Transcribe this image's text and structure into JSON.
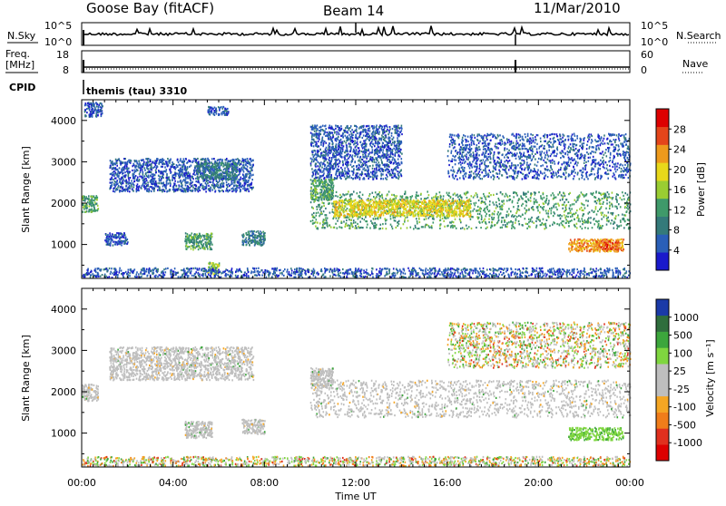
{
  "header": {
    "station": "Goose Bay (fitACF)",
    "beam": "Beam 14",
    "date": "11/Mar/2010"
  },
  "status_panels": {
    "nsky_label": "N.Sky",
    "nsky_ticks": [
      "10^5",
      "10^0"
    ],
    "nsearch_label": "N.Search",
    "nsearch_ticks": [
      "10^5",
      "10^0"
    ],
    "freq_label_line1": "Freq.",
    "freq_label_line2": "[MHz]",
    "freq_ticks": [
      "18",
      "8"
    ],
    "nave_label": "Nave",
    "nave_ticks": [
      "60",
      "0"
    ],
    "cpid_label": "CPID",
    "cpid_value": "themis (tau) 3310"
  },
  "chart_data": [
    {
      "type": "heatmap",
      "name": "power",
      "ylabel": "Slant Range [km]",
      "y_ticks": [
        "4000",
        "3000",
        "2000",
        "1000"
      ],
      "ylim": [
        180,
        4500
      ],
      "xlim_hours": [
        0,
        24
      ],
      "colorbar": {
        "label": "Power [dB]",
        "tick_labels": [
          "28",
          "24",
          "20",
          "16",
          "12",
          "8",
          "4"
        ],
        "colors": [
          "#1a1acc",
          "#2a5fb8",
          "#347a7a",
          "#3f9a6a",
          "#9acd32",
          "#e8d81a",
          "#ee9a1c",
          "#e4451a",
          "#dd0000"
        ]
      },
      "regions": [
        {
          "t0": 0.0,
          "t1": 0.7,
          "r0": 1800,
          "r1": 2200,
          "level": 3
        },
        {
          "t0": 0.1,
          "t1": 0.9,
          "r0": 4100,
          "r1": 4450,
          "level": 1
        },
        {
          "t0": 1.2,
          "t1": 7.5,
          "r0": 2300,
          "r1": 3100,
          "level": 1
        },
        {
          "t0": 5.0,
          "t1": 6.8,
          "r0": 2600,
          "r1": 3000,
          "level": 2
        },
        {
          "t0": 1.0,
          "t1": 2.0,
          "r0": 1000,
          "r1": 1300,
          "level": 1
        },
        {
          "t0": 4.5,
          "t1": 5.7,
          "r0": 900,
          "r1": 1300,
          "level": 3
        },
        {
          "t0": 7.0,
          "t1": 8.0,
          "r0": 1000,
          "r1": 1350,
          "level": 2
        },
        {
          "t0": 5.5,
          "t1": 6.4,
          "r0": 4150,
          "r1": 4350,
          "level": 1
        },
        {
          "t0": 5.5,
          "t1": 6.0,
          "r0": 300,
          "r1": 600,
          "level": 4
        },
        {
          "t0": 0.0,
          "t1": 24.0,
          "r0": 200,
          "r1": 450,
          "level": 1
        },
        {
          "t0": 10.0,
          "t1": 24.0,
          "r0": 1400,
          "r1": 2300,
          "level": 3
        },
        {
          "t0": 11.0,
          "t1": 17.0,
          "r0": 1700,
          "r1": 2100,
          "level": 5
        },
        {
          "t0": 10.0,
          "t1": 11.0,
          "r0": 2100,
          "r1": 2600,
          "level": 3
        },
        {
          "t0": 10.0,
          "t1": 14.0,
          "r0": 2600,
          "r1": 3900,
          "level": 1
        },
        {
          "t0": 16.0,
          "t1": 24.0,
          "r0": 2600,
          "r1": 3700,
          "level": 1
        },
        {
          "t0": 21.3,
          "t1": 23.7,
          "r0": 850,
          "r1": 1150,
          "level": 6
        },
        {
          "t0": 22.5,
          "t1": 23.5,
          "r0": 900,
          "r1": 1100,
          "level": 7
        }
      ]
    },
    {
      "type": "heatmap",
      "name": "velocity",
      "ylabel": "Slant Range [km]",
      "y_ticks": [
        "4000",
        "3000",
        "2000",
        "1000"
      ],
      "ylim": [
        180,
        4500
      ],
      "xlabel": "Time UT",
      "x_ticks": [
        "00:00",
        "04:00",
        "08:00",
        "12:00",
        "16:00",
        "20:00",
        "00:00"
      ],
      "xlim_hours": [
        0,
        24
      ],
      "colorbar": {
        "label": "Velocity [m s⁻¹]",
        "tick_labels": [
          "1000",
          "500",
          "100",
          "25",
          "-25",
          "-100",
          "-500",
          "-1000"
        ],
        "colors": [
          "#1a3aa8",
          "#2f6e3d",
          "#3ca63c",
          "#7fd63f",
          "#bebebe",
          "#bebebe",
          "#f5a623",
          "#f07d1a",
          "#e0301e",
          "#dd0000"
        ]
      },
      "regions": [
        {
          "t0": 0.0,
          "t1": 0.7,
          "r0": 1800,
          "r1": 2200,
          "vel": "ground"
        },
        {
          "t0": 1.2,
          "t1": 7.5,
          "r0": 2300,
          "r1": 3100,
          "vel": "ground"
        },
        {
          "t0": 10.0,
          "t1": 24.0,
          "r0": 1400,
          "r1": 2300,
          "vel": "ground"
        },
        {
          "t0": 10.0,
          "t1": 11.0,
          "r0": 2100,
          "r1": 2600,
          "vel": "ground"
        },
        {
          "t0": 0.0,
          "t1": 24.0,
          "r0": 200,
          "r1": 450,
          "vel": "mixed"
        },
        {
          "t0": 21.3,
          "t1": 23.7,
          "r0": 850,
          "r1": 1150,
          "vel": "100"
        },
        {
          "t0": 4.5,
          "t1": 5.7,
          "r0": 900,
          "r1": 1300,
          "vel": "ground"
        },
        {
          "t0": 7.0,
          "t1": 8.0,
          "r0": 1000,
          "r1": 1350,
          "vel": "ground"
        },
        {
          "t0": 16.0,
          "t1": 24.0,
          "r0": 2600,
          "r1": 3700,
          "vel": "mixed"
        }
      ]
    }
  ]
}
